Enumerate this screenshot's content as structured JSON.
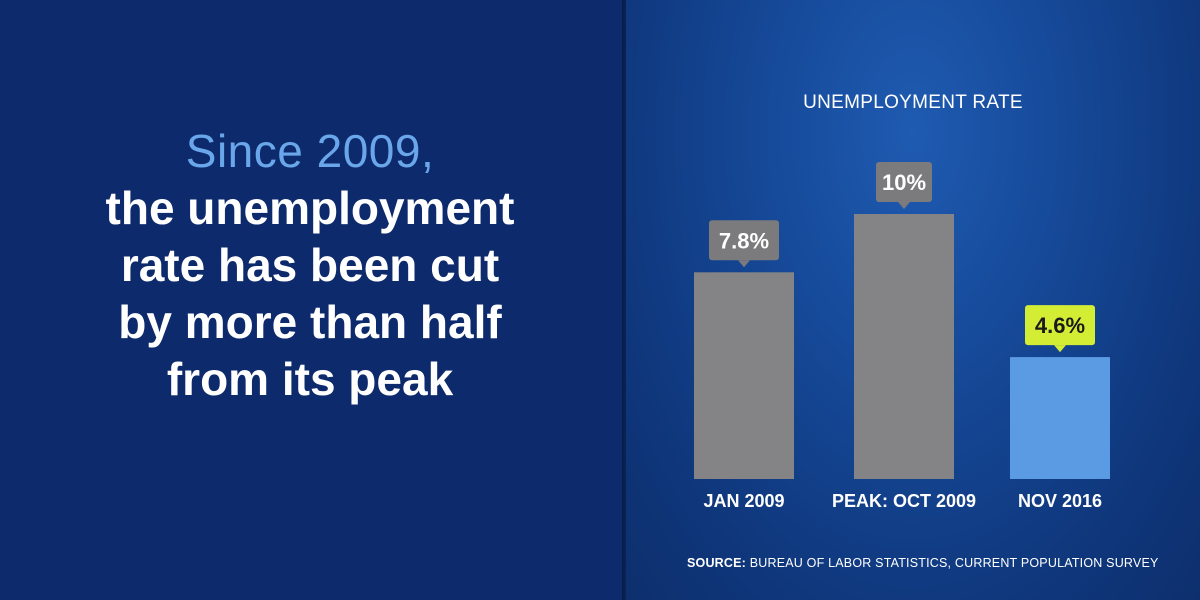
{
  "headline": {
    "lead": "Since 2009,",
    "lines": [
      "the unemployment",
      "rate has been cut",
      "by more than half",
      "from its peak"
    ]
  },
  "colors": {
    "bar_gray": "#848486",
    "bar_blue": "#5b9be3",
    "label_gray": "#7b7b7d",
    "label_highlight": "#d3ed35",
    "headline_accent": "#6aa6ea"
  },
  "chart_data": {
    "type": "bar",
    "title": "UNEMPLOYMENT RATE",
    "categories": [
      "JAN 2009",
      "PEAK: OCT 2009",
      "NOV 2016"
    ],
    "values": [
      7.8,
      10,
      4.6
    ],
    "data_labels": [
      "7.8%",
      "10%",
      "4.6%"
    ],
    "highlight_index": 2,
    "ylim": [
      0,
      10
    ],
    "grid": false,
    "legend": "none"
  },
  "source": {
    "label": "SOURCE:",
    "text": " BUREAU OF LABOR STATISTICS, CURRENT POPULATION SURVEY"
  }
}
